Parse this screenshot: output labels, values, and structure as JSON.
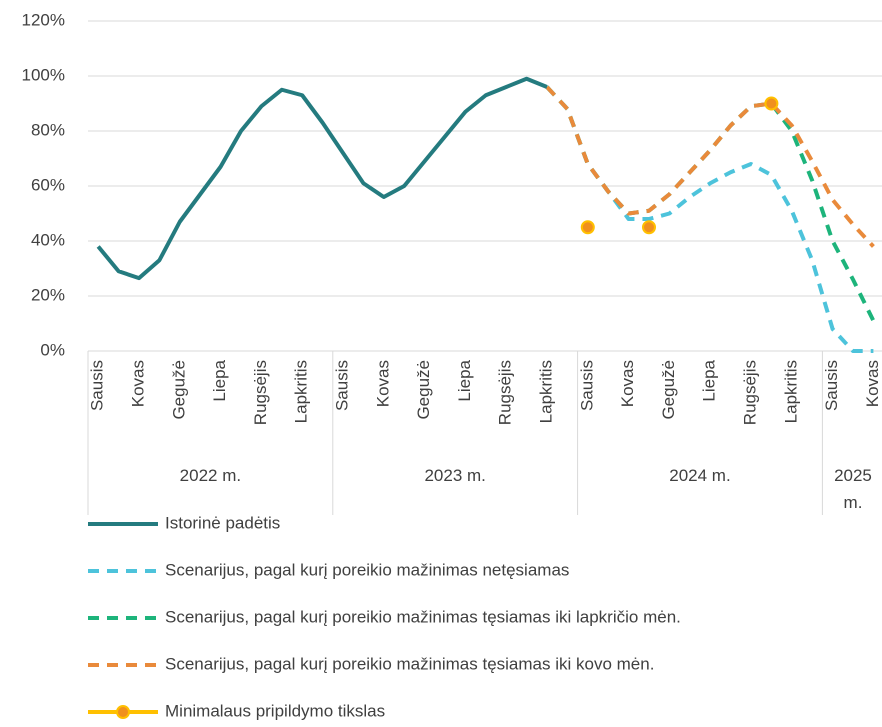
{
  "chart_data": {
    "type": "line",
    "categories": [
      "Sausis",
      null,
      "Kovas",
      null,
      "Gegužė",
      null,
      "Liepa",
      null,
      "Rugsėjis",
      null,
      "Lapkritis",
      null,
      "Sausis",
      null,
      "Kovas",
      null,
      "Gegužė",
      null,
      "Liepa",
      null,
      "Rugsėjis",
      null,
      "Lapkritis",
      null,
      "Sausis",
      null,
      "Kovas",
      null,
      "Gegužė",
      null,
      "Liepa",
      null,
      "Rugsėjis",
      null,
      "Lapkritis",
      null,
      "Sausis",
      null,
      "Kovas"
    ],
    "groups": [
      "2022 m.",
      "2023 m.",
      "2024 m.",
      "2025 m."
    ],
    "ylim": [
      0,
      120
    ],
    "yticks": [
      {
        "value": 0,
        "label": "0%"
      },
      {
        "value": 20,
        "label": "20%"
      },
      {
        "value": 40,
        "label": "40%"
      },
      {
        "value": 60,
        "label": "60%"
      },
      {
        "value": 80,
        "label": "80%"
      },
      {
        "value": 100,
        "label": "100%"
      },
      {
        "value": 120,
        "label": "120%"
      }
    ],
    "grid": true,
    "series": [
      {
        "name": "Istorinė padėtis",
        "color": "#247b7f",
        "style": "solid",
        "values": [
          38,
          29,
          26.5,
          33,
          47,
          57,
          67,
          80,
          89,
          95,
          93,
          83,
          72,
          61,
          56,
          60,
          69,
          78,
          87,
          93,
          96,
          99,
          96,
          null,
          null,
          null,
          null,
          null,
          null,
          null,
          null,
          null,
          null,
          null,
          null,
          null,
          null,
          null,
          null
        ]
      },
      {
        "name": "Scenarijus, pagal kurį poreikio mažinimas netęsiamas",
        "color": "#4dc3db",
        "style": "dashed",
        "values": [
          null,
          null,
          null,
          null,
          null,
          null,
          null,
          null,
          null,
          null,
          null,
          null,
          null,
          null,
          null,
          null,
          null,
          null,
          null,
          null,
          null,
          null,
          96,
          88,
          68,
          58,
          48,
          48,
          50,
          56,
          61,
          65,
          68,
          64,
          51,
          33,
          8,
          0,
          0
        ]
      },
      {
        "name": "Scenarijus, pagal kurį poreikio mažinimas tęsiamas iki lapkričio mėn.",
        "color": "#1db47b",
        "style": "dashed",
        "values": [
          null,
          null,
          null,
          null,
          null,
          null,
          null,
          null,
          null,
          null,
          null,
          null,
          null,
          null,
          null,
          null,
          null,
          null,
          null,
          null,
          null,
          null,
          96,
          88,
          68,
          58,
          50,
          51,
          57,
          65,
          73,
          82,
          89,
          90,
          80,
          62,
          40,
          26,
          11
        ]
      },
      {
        "name": "Scenarijus, pagal kurį poreikio mažinimas tęsiamas iki kovo mėn.",
        "color": "#e98a3b",
        "style": "dashed",
        "values": [
          null,
          null,
          null,
          null,
          null,
          null,
          null,
          null,
          null,
          null,
          null,
          null,
          null,
          null,
          null,
          null,
          null,
          null,
          null,
          null,
          null,
          null,
          96,
          88,
          68,
          58,
          50,
          51,
          57,
          65,
          73,
          82,
          89,
          90,
          82,
          69,
          55,
          46,
          38
        ]
      },
      {
        "name": "Minimalaus pripildymo tikslas",
        "color": "#ffc000",
        "marker_color": "#f0901e",
        "style": "markers",
        "values": [
          null,
          null,
          null,
          null,
          null,
          null,
          null,
          null,
          null,
          null,
          null,
          null,
          null,
          null,
          null,
          null,
          null,
          null,
          null,
          null,
          null,
          null,
          null,
          null,
          45,
          null,
          null,
          45,
          null,
          null,
          null,
          null,
          null,
          90,
          null,
          null,
          null,
          null,
          null
        ]
      }
    ]
  }
}
